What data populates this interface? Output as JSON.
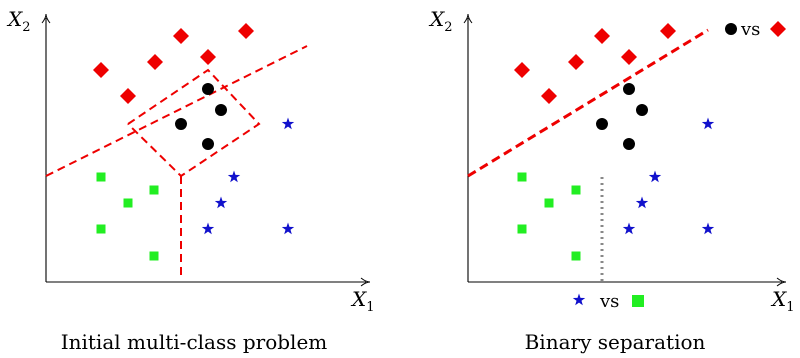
{
  "panels": [
    {
      "id": "left",
      "x_label": "X",
      "x_sub": "1",
      "y_label": "X",
      "y_sub": "2",
      "caption": "Initial multi-class problem",
      "diamonds": [
        [
          101,
          70
        ],
        [
          128,
          96
        ],
        [
          155,
          62
        ],
        [
          181,
          36
        ],
        [
          208,
          57
        ],
        [
          246,
          31
        ]
      ],
      "circles": [
        [
          208,
          89
        ],
        [
          221,
          110
        ],
        [
          181,
          124
        ],
        [
          208,
          144
        ]
      ],
      "squares": [
        [
          101,
          177
        ],
        [
          128,
          203
        ],
        [
          154,
          190
        ],
        [
          101,
          229
        ],
        [
          154,
          256
        ]
      ],
      "stars": [
        [
          288,
          124
        ],
        [
          234,
          177
        ],
        [
          221,
          203
        ],
        [
          208,
          229
        ],
        [
          288,
          229
        ]
      ],
      "dashed_line": [
        [
          46,
          176
        ],
        [
          307,
          46
        ]
      ],
      "dashed_region": [
        [
          128,
          124
        ],
        [
          208,
          70
        ],
        [
          259,
          124
        ],
        [
          181,
          176
        ],
        [
          128,
          124
        ]
      ],
      "dashed_stub": [
        [
          181,
          176
        ],
        [
          181,
          280
        ]
      ]
    },
    {
      "id": "right",
      "x_label": "X",
      "x_sub": "1",
      "y_label": "X",
      "y_sub": "2",
      "caption": "Binary separation",
      "diamonds": [
        [
          522,
          70
        ],
        [
          549,
          96
        ],
        [
          576,
          62
        ],
        [
          602,
          36
        ],
        [
          629,
          57
        ],
        [
          668,
          31
        ]
      ],
      "circles": [
        [
          629,
          89
        ],
        [
          642,
          110
        ],
        [
          602,
          124
        ],
        [
          629,
          144
        ]
      ],
      "squares": [
        [
          522,
          177
        ],
        [
          549,
          203
        ],
        [
          576,
          190
        ],
        [
          522,
          229
        ],
        [
          576,
          256
        ]
      ],
      "stars": [
        [
          708,
          124
        ],
        [
          655,
          177
        ],
        [
          642,
          203
        ],
        [
          629,
          229
        ],
        [
          708,
          229
        ]
      ],
      "dashed_line": [
        [
          468,
          176
        ],
        [
          708,
          30
        ]
      ],
      "dotted_line": [
        [
          602,
          177
        ],
        [
          602,
          282
        ]
      ],
      "top_legend_text": "vs",
      "bottom_legend_text": "vs"
    }
  ],
  "colors": {
    "diamond": "#ee0000",
    "circle": "#000000",
    "square": "#22ee22",
    "star": "#1111cc",
    "dashed": "#ee0000",
    "dotted": "#888888",
    "axis": "#000000"
  }
}
